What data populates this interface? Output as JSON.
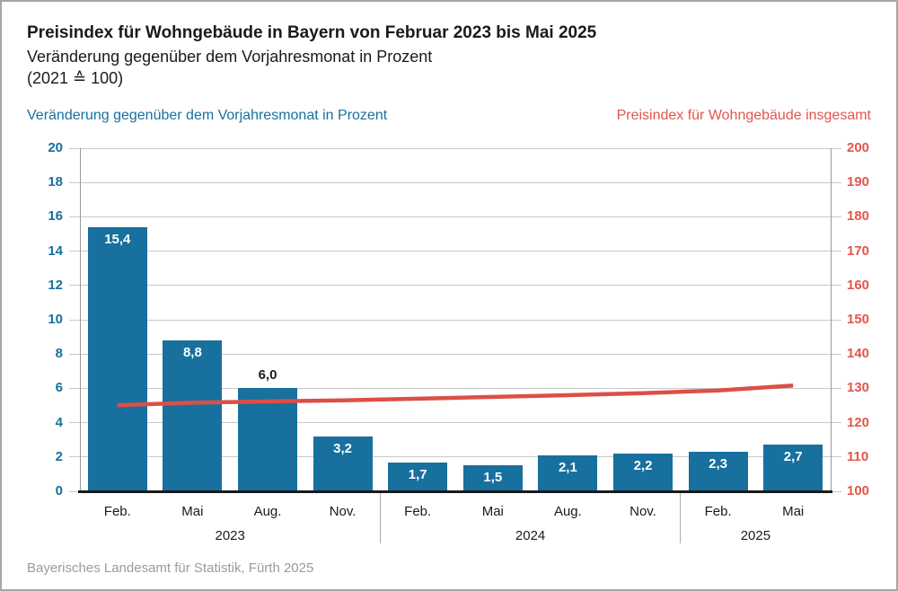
{
  "header": {
    "title": "Preisindex für Wohngebäude in Bayern von Februar 2023 bis Mai 2025",
    "subtitle": "Veränderung gegenüber dem Vorjahresmonat in Prozent",
    "base_note": "(2021 ≙ 100)"
  },
  "legend": {
    "left": "Veränderung gegenüber dem Vorjahresmonat in Prozent",
    "right": "Preisindex für Wohngebäude insgesamt"
  },
  "footer": {
    "source": "Bayerisches Landesamt für Statistik, Fürth 2025"
  },
  "colors": {
    "bar_blue": "#17709e",
    "blue_text": "#17709e",
    "line_red": "#dc4f46",
    "red_text": "#e4554b",
    "grid": "#c9c9c9",
    "axis_line": "#999999",
    "baseline_black": "#1a1a1a",
    "separator": "#ababab",
    "footer_text": "#9b9b9b",
    "frame_border": "#a6a6a6",
    "bar_label_inside": "#ffffff",
    "bar_label_outside": "#1a1a1a"
  },
  "chart_data": {
    "type": "bar",
    "title": "Preisindex für Wohngebäude in Bayern von Februar 2023 bis Mai 2025",
    "subtitle": "Veränderung gegenüber dem Vorjahresmonat in Prozent (2021 ≙ 100)",
    "months": [
      "Feb.",
      "Mai",
      "Aug.",
      "Nov.",
      "Feb.",
      "Mai",
      "Aug.",
      "Nov.",
      "Feb.",
      "Mai"
    ],
    "year_groups": [
      {
        "label": "2023",
        "months": 4
      },
      {
        "label": "2024",
        "months": 4
      },
      {
        "label": "2025",
        "months": 2
      }
    ],
    "left_axis": {
      "label": "Veränderung gegenüber dem Vorjahresmonat in Prozent",
      "min": 0,
      "max": 20,
      "step": 2,
      "ticks": [
        "0",
        "2",
        "4",
        "6",
        "8",
        "10",
        "12",
        "14",
        "16",
        "18",
        "20"
      ]
    },
    "right_axis": {
      "label": "Preisindex für Wohngebäude insgesamt",
      "min": 100,
      "max": 200,
      "step": 10,
      "ticks": [
        "100",
        "110",
        "120",
        "130",
        "140",
        "150",
        "160",
        "170",
        "180",
        "190",
        "200"
      ]
    },
    "grid": true,
    "series": [
      {
        "name": "Veränderung gegenüber dem Vorjahresmonat in Prozent",
        "type": "bar",
        "axis": "left",
        "values": [
          15.4,
          8.8,
          6.0,
          3.2,
          1.7,
          1.5,
          2.1,
          2.2,
          2.3,
          2.7
        ],
        "labels": [
          "15,4",
          "8,8",
          "6,0",
          "3,2",
          "1,7",
          "1,5",
          "2,1",
          "2,2",
          "2,3",
          "2,7"
        ],
        "label_above": [
          false,
          false,
          true,
          false,
          false,
          false,
          false,
          false,
          false,
          false
        ]
      },
      {
        "name": "Preisindex für Wohngebäude insgesamt",
        "type": "line",
        "axis": "right",
        "values": [
          125.1,
          125.8,
          126.2,
          126.5,
          127.0,
          127.5,
          128.0,
          128.6,
          129.4,
          130.8
        ]
      }
    ]
  }
}
